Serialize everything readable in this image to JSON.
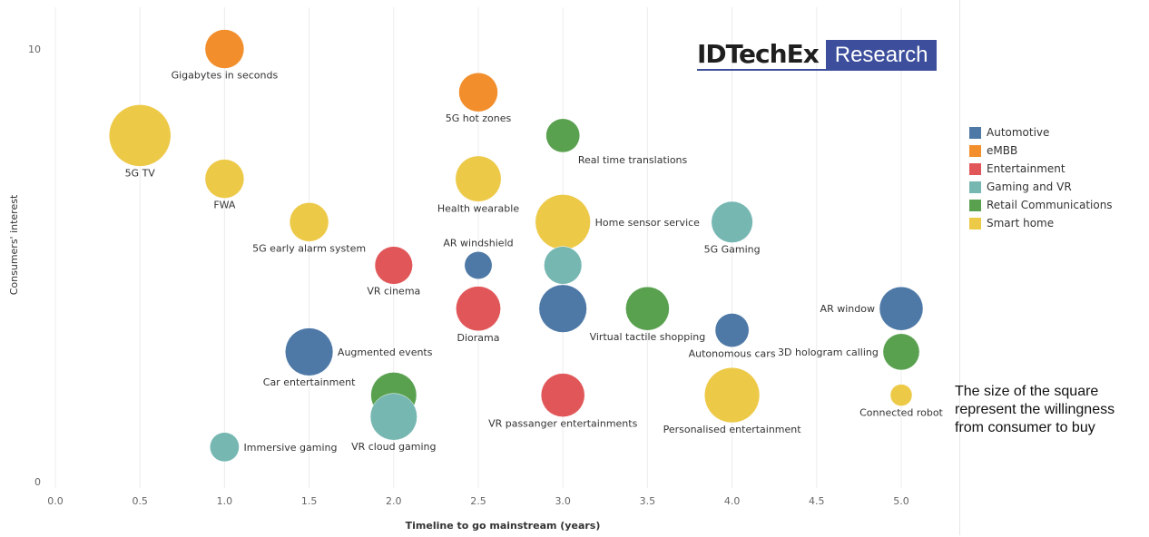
{
  "logo": {
    "left": "IDTechEx",
    "right": "Research"
  },
  "note": "The size of the square represent the willingness from consumer to buy",
  "legend_title_hidden": "",
  "chart_data": {
    "type": "scatter",
    "subtype": "bubble",
    "xlabel": "Timeline to go mainstream (years)",
    "ylabel": "Consumers' interest",
    "xlim": [
      -0.1,
      5.4
    ],
    "ylim": [
      -0.1,
      10.2
    ],
    "x_ticks": [
      "0.0",
      "0.5",
      "1.0",
      "1.5",
      "2.0",
      "2.5",
      "3.0",
      "3.5",
      "4.0",
      "4.5",
      "5.0"
    ],
    "y_ticks": [
      "0",
      "10"
    ],
    "grid": "vertical",
    "legend": [
      {
        "name": "Automotive",
        "color": "#4e79a7"
      },
      {
        "name": "eMBB",
        "color": "#f28e2b"
      },
      {
        "name": "Entertainment",
        "color": "#e15759"
      },
      {
        "name": "Gaming and VR",
        "color": "#76b7b2"
      },
      {
        "name": "Retail Communications",
        "color": "#59a14f"
      },
      {
        "name": "Smart home",
        "color": "#edc948"
      }
    ],
    "points": [
      {
        "label": "Gigabytes in seconds",
        "x": 1.0,
        "y": 10.0,
        "size": 0.8,
        "category": "eMBB",
        "label_pos": "below"
      },
      {
        "label": "5G hot zones",
        "x": 2.5,
        "y": 9.0,
        "size": 0.8,
        "category": "eMBB",
        "label_pos": "below"
      },
      {
        "label": "Real time translations",
        "x": 3.0,
        "y": 8.0,
        "size": 0.6,
        "category": "Retail Communications",
        "label_pos": "below-right"
      },
      {
        "label": "5G TV",
        "x": 0.5,
        "y": 8.0,
        "size": 2.0,
        "category": "Smart home",
        "label_pos": "below"
      },
      {
        "label": "FWA",
        "x": 1.0,
        "y": 7.0,
        "size": 0.8,
        "category": "Smart home",
        "label_pos": "below"
      },
      {
        "label": "Health wearable",
        "x": 2.5,
        "y": 7.0,
        "size": 1.1,
        "category": "Smart home",
        "label_pos": "below"
      },
      {
        "label": "5G early alarm system",
        "x": 1.5,
        "y": 6.0,
        "size": 0.8,
        "category": "Smart home",
        "label_pos": "below"
      },
      {
        "label": "Home sensor service",
        "x": 3.0,
        "y": 6.0,
        "size": 1.6,
        "category": "Smart home",
        "label_pos": "right"
      },
      {
        "label": "5G Gaming",
        "x": 4.0,
        "y": 6.0,
        "size": 0.9,
        "category": "Gaming and VR",
        "label_pos": "below"
      },
      {
        "label": "AR windshield",
        "x": 2.5,
        "y": 5.0,
        "size": 0.4,
        "category": "Automotive",
        "label_pos": "above"
      },
      {
        "label": "",
        "x": 3.0,
        "y": 5.0,
        "size": 0.75,
        "category": "Gaming and VR",
        "label_pos": "none"
      },
      {
        "label": "VR cinema",
        "x": 2.0,
        "y": 5.0,
        "size": 0.75,
        "category": "Entertainment",
        "label_pos": "below"
      },
      {
        "label": "Diorama",
        "x": 2.5,
        "y": 4.0,
        "size": 1.05,
        "category": "Entertainment",
        "label_pos": "below"
      },
      {
        "label": "",
        "x": 3.0,
        "y": 4.0,
        "size": 1.2,
        "category": "Automotive",
        "label_pos": "none"
      },
      {
        "label": "Virtual tactile shopping",
        "x": 3.5,
        "y": 4.0,
        "size": 1.0,
        "category": "Retail Communications",
        "label_pos": "below"
      },
      {
        "label": "Autonomous cars",
        "x": 4.0,
        "y": 3.5,
        "size": 0.6,
        "category": "Automotive",
        "label_pos": "below"
      },
      {
        "label": "AR window",
        "x": 5.0,
        "y": 4.0,
        "size": 1.0,
        "category": "Automotive",
        "label_pos": "left"
      },
      {
        "label": "3D hologram calling",
        "x": 5.0,
        "y": 3.0,
        "size": 0.7,
        "category": "Retail Communications",
        "label_pos": "left"
      },
      {
        "label": "Augmented events",
        "x": 1.5,
        "y": 3.0,
        "size": 1.2,
        "category": "Automotive",
        "label_pos": "right"
      },
      {
        "label": "Car entertainment",
        "x": 1.5,
        "y": 3.0,
        "size": 0,
        "category": "Automotive",
        "label_pos": "below"
      },
      {
        "label": "",
        "x": 2.0,
        "y": 2.0,
        "size": 1.1,
        "category": "Retail Communications",
        "label_pos": "none"
      },
      {
        "label": "VR cloud gaming",
        "x": 2.0,
        "y": 1.5,
        "size": 1.15,
        "category": "Gaming and VR",
        "label_pos": "below"
      },
      {
        "label": "VR passanger entertainments",
        "x": 3.0,
        "y": 2.0,
        "size": 1.0,
        "category": "Entertainment",
        "label_pos": "below"
      },
      {
        "label": "Personalised entertainment",
        "x": 4.0,
        "y": 2.0,
        "size": 1.6,
        "category": "Smart home",
        "label_pos": "below"
      },
      {
        "label": "Connected robot",
        "x": 5.0,
        "y": 2.0,
        "size": 0.25,
        "category": "Smart home",
        "label_pos": "below"
      },
      {
        "label": "Immersive gaming",
        "x": 1.0,
        "y": 0.8,
        "size": 0.45,
        "category": "Gaming and VR",
        "label_pos": "right"
      }
    ]
  }
}
